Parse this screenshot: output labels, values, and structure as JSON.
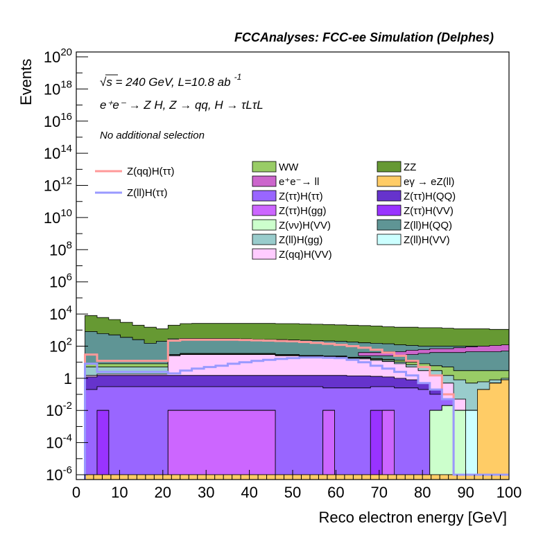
{
  "chart_data": {
    "type": "area",
    "stacked": true,
    "title": "FCCAnalyses: FCC-ee Simulation (Delphes)",
    "xlabel": "Reco electron energy [GeV]",
    "ylabel": "Events",
    "xlim": [
      0,
      100
    ],
    "ylim": [
      5e-07,
      2e+20
    ],
    "yscale": "log",
    "grid": false,
    "legend_position": "top-center",
    "annotations": {
      "sqrt_s": "√s = 240 GeV, L=10.8 ab",
      "sqrt_s_exp": "-1",
      "process": "e⁺e⁻ → Z H, Z → qq, H → τLτL",
      "selection": "No additional selection"
    },
    "x_ticks": [
      "0",
      "10",
      "20",
      "30",
      "40",
      "50",
      "60",
      "70",
      "80",
      "90",
      "100"
    ],
    "y_ticks": [
      {
        "base": "10",
        "exp": "20",
        "value": 1e+20
      },
      {
        "base": "10",
        "exp": "18",
        "value": 1e+18
      },
      {
        "base": "10",
        "exp": "16",
        "value": 1e+16
      },
      {
        "base": "10",
        "exp": "14",
        "value": 100000000000000.0
      },
      {
        "base": "10",
        "exp": "12",
        "value": 1000000000000.0
      },
      {
        "base": "10",
        "exp": "10",
        "value": 10000000000.0
      },
      {
        "base": "10",
        "exp": "8",
        "value": 100000000.0
      },
      {
        "base": "10",
        "exp": "6",
        "value": 1000000.0
      },
      {
        "base": "10",
        "exp": "4",
        "value": 10000.0
      },
      {
        "base": "10",
        "exp": "2",
        "value": 100.0
      },
      {
        "base": "1",
        "exp": "",
        "value": 1
      },
      {
        "base": "10",
        "exp": "-2",
        "value": 0.01
      },
      {
        "base": "10",
        "exp": "-4",
        "value": 0.0001
      },
      {
        "base": "10",
        "exp": "-6",
        "value": 1e-06
      }
    ],
    "bin_edges": [
      2,
      4.8,
      7.5,
      10.2,
      13,
      15.7,
      18.5,
      21.2,
      24,
      26.7,
      29.5,
      32.2,
      35,
      37.7,
      40.5,
      43.2,
      46,
      48.7,
      51.5,
      54.2,
      57,
      59.7,
      62.5,
      65.2,
      68,
      70.7,
      73.5,
      76.2,
      79,
      81.7,
      84.5,
      87.2,
      90,
      92.7,
      95.5,
      98.2,
      100
    ],
    "stack_bands": [
      {
        "name": "e⁺e⁻→ ll + eγ → eZ(ll)",
        "color": "#ffcc66",
        "top": [
          1e-06,
          1e-06,
          1e-06,
          1e-06,
          1e-06,
          1e-06,
          1e-06,
          1e-06,
          1e-06,
          1e-06,
          1e-06,
          1e-06,
          1e-06,
          1e-06,
          1e-06,
          1e-06,
          1e-06,
          1e-06,
          1e-06,
          1e-06,
          1e-06,
          1e-06,
          1e-06,
          1e-06,
          1e-06,
          1e-06,
          1e-06,
          1e-06,
          1e-06,
          1e-06,
          1e-06,
          1e-06,
          1e-06,
          0.2,
          0.5,
          0.8
        ]
      },
      {
        "name": "Z(ll)H(VV)",
        "color": "#ccffff",
        "top": [
          1e-06,
          1e-06,
          1e-06,
          1e-06,
          1e-06,
          1e-06,
          1e-06,
          1e-06,
          1e-06,
          1e-06,
          1e-06,
          1e-06,
          1e-06,
          1e-06,
          1e-06,
          1e-06,
          1e-06,
          1e-06,
          1e-06,
          1e-06,
          1e-06,
          1e-06,
          1e-06,
          1e-06,
          1e-06,
          1e-06,
          1e-06,
          1e-06,
          1e-06,
          1e-06,
          1e-06,
          1e-06,
          0.01,
          0.2,
          0.5,
          0.8
        ]
      },
      {
        "name": "Z(νν)H(VV)",
        "color": "#ccffcc",
        "top": [
          1e-06,
          1e-06,
          1e-06,
          1e-06,
          1e-06,
          1e-06,
          1e-06,
          1e-06,
          1e-06,
          1e-06,
          1e-06,
          1e-06,
          1e-06,
          1e-06,
          1e-06,
          1e-06,
          1e-06,
          1e-06,
          1e-06,
          1e-06,
          1e-06,
          1e-06,
          1e-06,
          1e-06,
          1e-06,
          1e-06,
          1e-06,
          1e-06,
          1e-06,
          0.01,
          0.02,
          0.01,
          0.01,
          0.2,
          0.5,
          0.8
        ]
      },
      {
        "name": "Z(ττ)H(gg)",
        "color": "#cc66ff",
        "top": [
          1e-06,
          1e-06,
          1e-06,
          1e-06,
          1e-06,
          1e-06,
          1e-06,
          0.01,
          0.01,
          0.01,
          0.01,
          0.01,
          0.01,
          0.01,
          0.01,
          0.01,
          1e-06,
          1e-06,
          1e-06,
          1e-06,
          0.01,
          1e-06,
          1e-06,
          1e-06,
          1e-06,
          0.01,
          1e-06,
          1e-06,
          1e-06,
          0.01,
          0.02,
          0.01,
          0.01,
          0.2,
          0.5,
          0.8
        ]
      },
      {
        "name": "Z(ττ)H(VV)",
        "color": "#9933ff",
        "top": [
          1e-06,
          0.01,
          1e-06,
          1e-06,
          1e-06,
          1e-06,
          1e-06,
          0.01,
          0.01,
          0.01,
          0.01,
          0.01,
          0.01,
          0.01,
          0.01,
          0.01,
          1e-06,
          1e-06,
          1e-06,
          1e-06,
          0.01,
          1e-06,
          1e-06,
          1e-06,
          0.01,
          0.01,
          1e-06,
          1e-06,
          1e-06,
          0.01,
          0.02,
          0.01,
          0.01,
          0.2,
          0.5,
          0.8
        ]
      },
      {
        "name": "Z(ττ)H(ττ)",
        "color": "#9966ff",
        "top": [
          0.2,
          0.3,
          0.3,
          0.3,
          0.3,
          0.3,
          0.3,
          0.3,
          0.3,
          0.3,
          0.3,
          0.3,
          0.3,
          0.3,
          0.3,
          0.3,
          0.3,
          0.3,
          0.3,
          0.3,
          0.25,
          0.25,
          0.25,
          0.25,
          0.3,
          0.3,
          0.25,
          0.25,
          0.2,
          0.1,
          0.05,
          0.01,
          0.01,
          0.2,
          0.5,
          0.8
        ]
      },
      {
        "name": "Z(ττ)H(QQ)",
        "color": "#6633cc",
        "top": [
          1.2,
          1.5,
          1.5,
          1.5,
          1.5,
          1.5,
          1.5,
          1.5,
          1.5,
          1.5,
          1.5,
          1.5,
          1.5,
          1.5,
          1.5,
          1.5,
          1.5,
          1.5,
          1.5,
          1.5,
          1.5,
          1.5,
          1.4,
          1.4,
          1.3,
          1.2,
          1,
          0.8,
          0.5,
          0.2,
          0.05,
          0.01,
          0.01,
          0.2,
          0.5,
          0.8
        ]
      },
      {
        "name": "Z(qq)H(VV)",
        "color": "#ffccff",
        "top": [
          1.5,
          1.8,
          1.8,
          1.8,
          1.8,
          1.8,
          1.8,
          25,
          30,
          30,
          30,
          30,
          30,
          30,
          30,
          30,
          25,
          25,
          22,
          22,
          20,
          20,
          16,
          16,
          13,
          11,
          8,
          5,
          3,
          1.5,
          0.5,
          0.05,
          0.01,
          0.2,
          0.5,
          0.8
        ]
      },
      {
        "name": "Z(ll)H(gg)",
        "color": "#99cccc",
        "top": [
          5,
          5,
          5,
          5,
          5,
          5,
          5,
          28,
          32,
          32,
          32,
          32,
          32,
          32,
          32,
          32,
          27,
          27,
          24,
          24,
          22,
          22,
          18,
          18,
          15,
          13,
          10,
          7,
          5,
          3,
          1.5,
          0.8,
          0.5,
          0.6,
          0.8,
          1
        ]
      },
      {
        "name": "WW",
        "color": "#99cc66",
        "top": [
          8,
          8,
          8,
          8,
          8,
          8,
          8,
          30,
          35,
          35,
          35,
          35,
          35,
          35,
          35,
          35,
          30,
          30,
          26,
          26,
          24,
          24,
          20,
          20,
          17,
          15,
          13,
          10,
          8,
          6,
          5,
          3,
          3,
          3,
          3,
          3
        ]
      },
      {
        "name": "Z(ll)H(QQ)",
        "color": "#5f9595",
        "top": [
          800,
          600,
          500,
          350,
          250,
          150,
          200,
          280,
          300,
          300,
          300,
          300,
          300,
          280,
          260,
          250,
          250,
          240,
          230,
          220,
          210,
          200,
          180,
          160,
          150,
          140,
          120,
          110,
          100,
          100,
          100,
          100,
          100,
          100,
          100,
          100
        ]
      },
      {
        "name": "ZZ",
        "color": "#669933",
        "top": [
          8000,
          6000,
          4500,
          3000,
          2000,
          1500,
          1200,
          2000,
          2500,
          2600,
          2600,
          2600,
          2600,
          2600,
          2600,
          2600,
          2500,
          2500,
          2400,
          2300,
          2200,
          2100,
          2000,
          1900,
          1800,
          1600,
          1500,
          1500,
          1400,
          1400,
          1300,
          1200,
          1200,
          1200,
          1100,
          1100
        ]
      }
    ],
    "overlay_bands": [
      {
        "name": "e⁺e⁻→ ll",
        "color": "#cc66cc",
        "x_from_bin": 23,
        "low": [
          25,
          25,
          25,
          25,
          30,
          35,
          40,
          40,
          40,
          45,
          45,
          45,
          50
        ],
        "high": [
          40,
          40,
          45,
          45,
          55,
          60,
          70,
          70,
          80,
          90,
          100,
          110,
          120
        ]
      }
    ],
    "line_series": [
      {
        "name": "Z(qq)H(ττ)",
        "color": "#ff9999",
        "values": [
          30,
          12,
          12,
          12,
          12,
          12,
          12,
          220,
          250,
          250,
          250,
          250,
          250,
          240,
          230,
          220,
          210,
          200,
          180,
          160,
          140,
          120,
          100,
          80,
          60,
          40,
          25,
          12,
          5,
          1.5,
          0.1,
          1e-06,
          1e-06,
          1e-06,
          1e-06,
          1e-06
        ]
      },
      {
        "name": "Z(ll)H(ττ)",
        "color": "#9999ff",
        "values": [
          8,
          2.5,
          2.5,
          2.5,
          2.5,
          2.5,
          2.5,
          2,
          3,
          4,
          5,
          6,
          8,
          10,
          12,
          14,
          16,
          18,
          20,
          20,
          19,
          18,
          14,
          10,
          6,
          4,
          2.5,
          1.5,
          0.5,
          0.2,
          0.05,
          1e-06,
          1e-06,
          1e-06,
          1e-06,
          1e-06
        ]
      }
    ],
    "legend_lines": [
      "Z(qq)H(ττ)",
      "Z(ll)H(ττ)"
    ],
    "legend_fills": [
      {
        "label": "WW",
        "color": "#99cc66"
      },
      {
        "label": "ZZ",
        "color": "#669933"
      },
      {
        "label": "e⁺e⁻→ ll",
        "color": "#cc66cc"
      },
      {
        "label": "eγ → eZ(ll)",
        "color": "#ffcc66"
      },
      {
        "label": "Z(ττ)H(ττ)",
        "color": "#9966ff"
      },
      {
        "label": "Z(ττ)H(QQ)",
        "color": "#6633cc"
      },
      {
        "label": "Z(ττ)H(gg)",
        "color": "#cc66ff"
      },
      {
        "label": "Z(ττ)H(VV)",
        "color": "#9933ff"
      },
      {
        "label": "Z(νν)H(VV)",
        "color": "#ccffcc"
      },
      {
        "label": "Z(ll)H(QQ)",
        "color": "#5f9595"
      },
      {
        "label": "Z(ll)H(gg)",
        "color": "#99cccc"
      },
      {
        "label": "Z(ll)H(VV)",
        "color": "#ccffff"
      },
      {
        "label": "Z(qq)H(VV)",
        "color": "#ffccff"
      }
    ]
  }
}
